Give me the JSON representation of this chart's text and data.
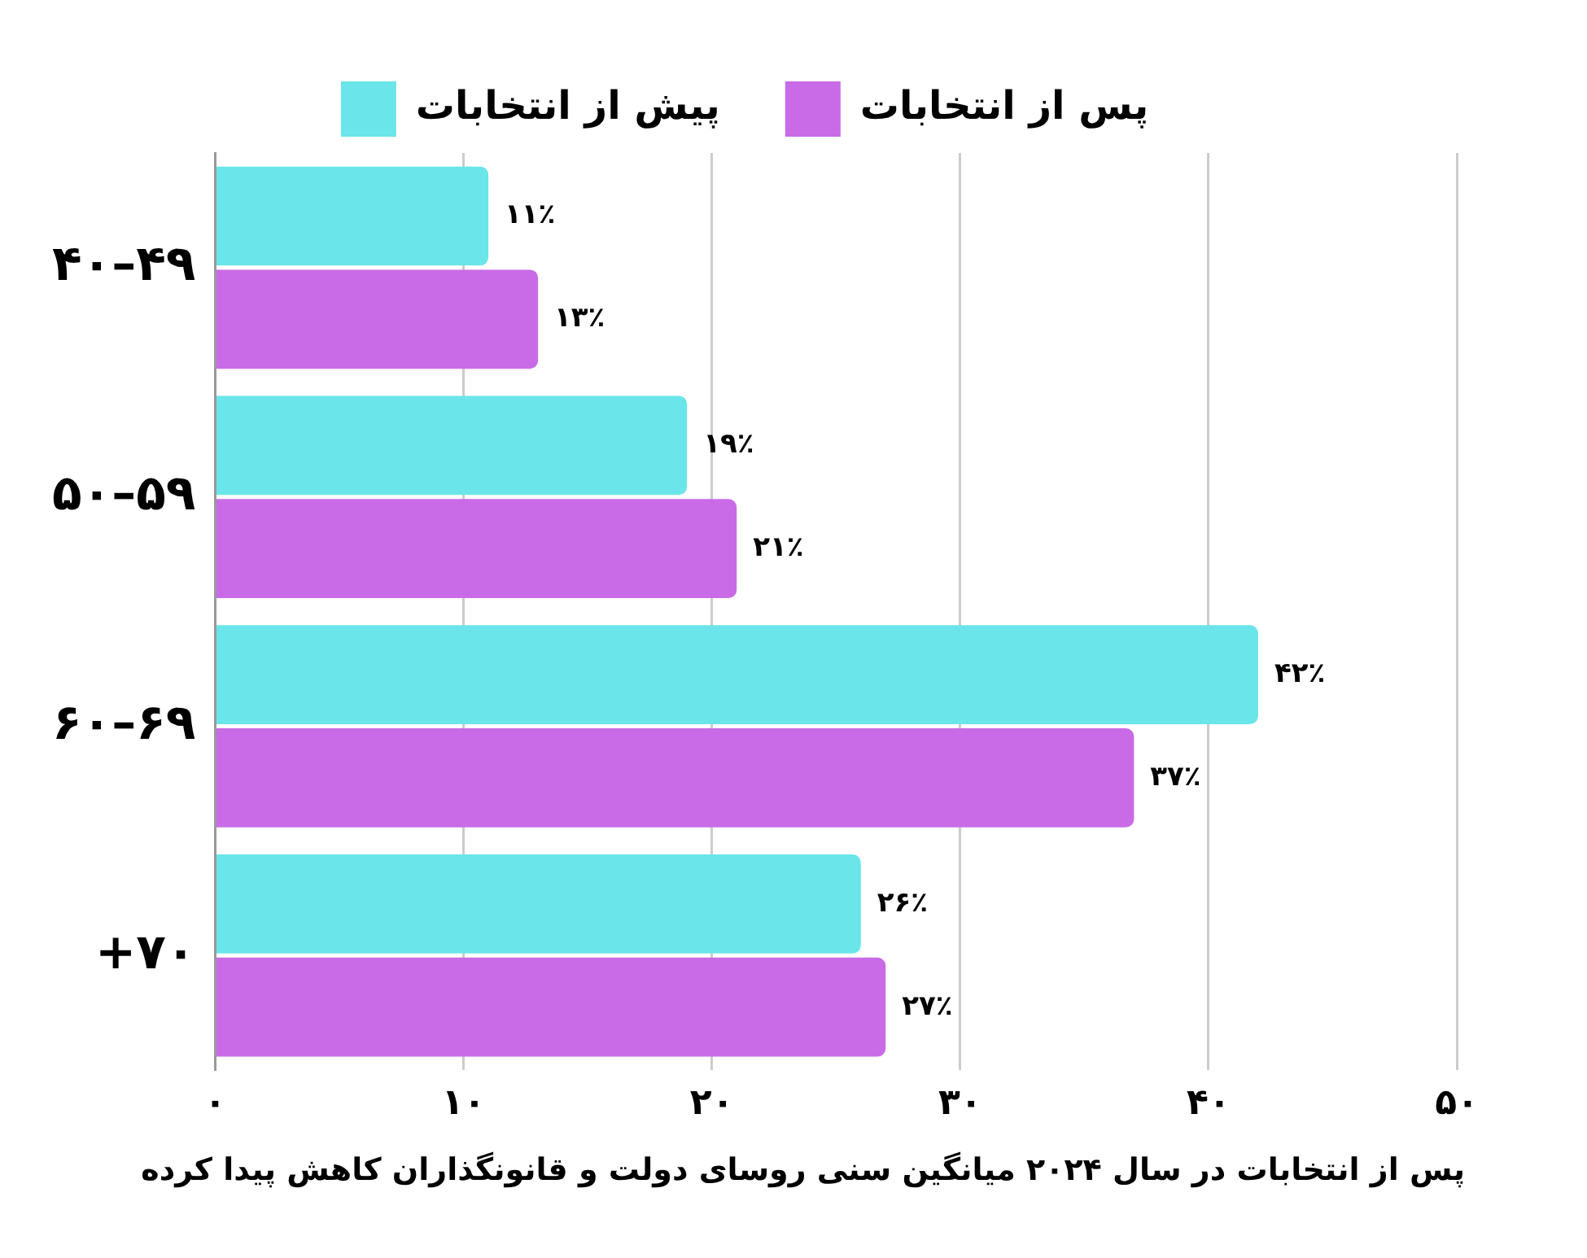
{
  "chart_data": {
    "type": "bar",
    "orientation": "horizontal",
    "categories": [
      "۴۰–۴۹",
      "۵۰–۵۹",
      "۶۰–۶۹",
      "+۷۰"
    ],
    "series": [
      {
        "name": "پیش از انتخابات",
        "color": "#6ae5e9",
        "values": [
          11,
          19,
          42,
          26
        ],
        "value_labels": [
          "۱۱٪",
          "۱۹٪",
          "۴۲٪",
          "۲۶٪"
        ]
      },
      {
        "name": "پس از انتخابات",
        "color": "#c96be6",
        "values": [
          13,
          21,
          37,
          27
        ],
        "value_labels": [
          "۱۳٪",
          "۲۱٪",
          "۳۷٪",
          "۲۷٪"
        ]
      }
    ],
    "xlim": [
      0,
      50
    ],
    "xticks": [
      {
        "value": 0,
        "label": "۰"
      },
      {
        "value": 10,
        "label": "۱۰"
      },
      {
        "value": 20,
        "label": "۲۰"
      },
      {
        "value": 30,
        "label": "۳۰"
      },
      {
        "value": 40,
        "label": "۴۰"
      },
      {
        "value": 50,
        "label": "۵۰"
      }
    ],
    "grid": "x",
    "legend": "top",
    "annotations": [
      "پس از انتخابات در سال ۲۰۲۴ میانگین سنی روسای دولت و قانونگذاران کاهش پیدا کرده"
    ]
  }
}
